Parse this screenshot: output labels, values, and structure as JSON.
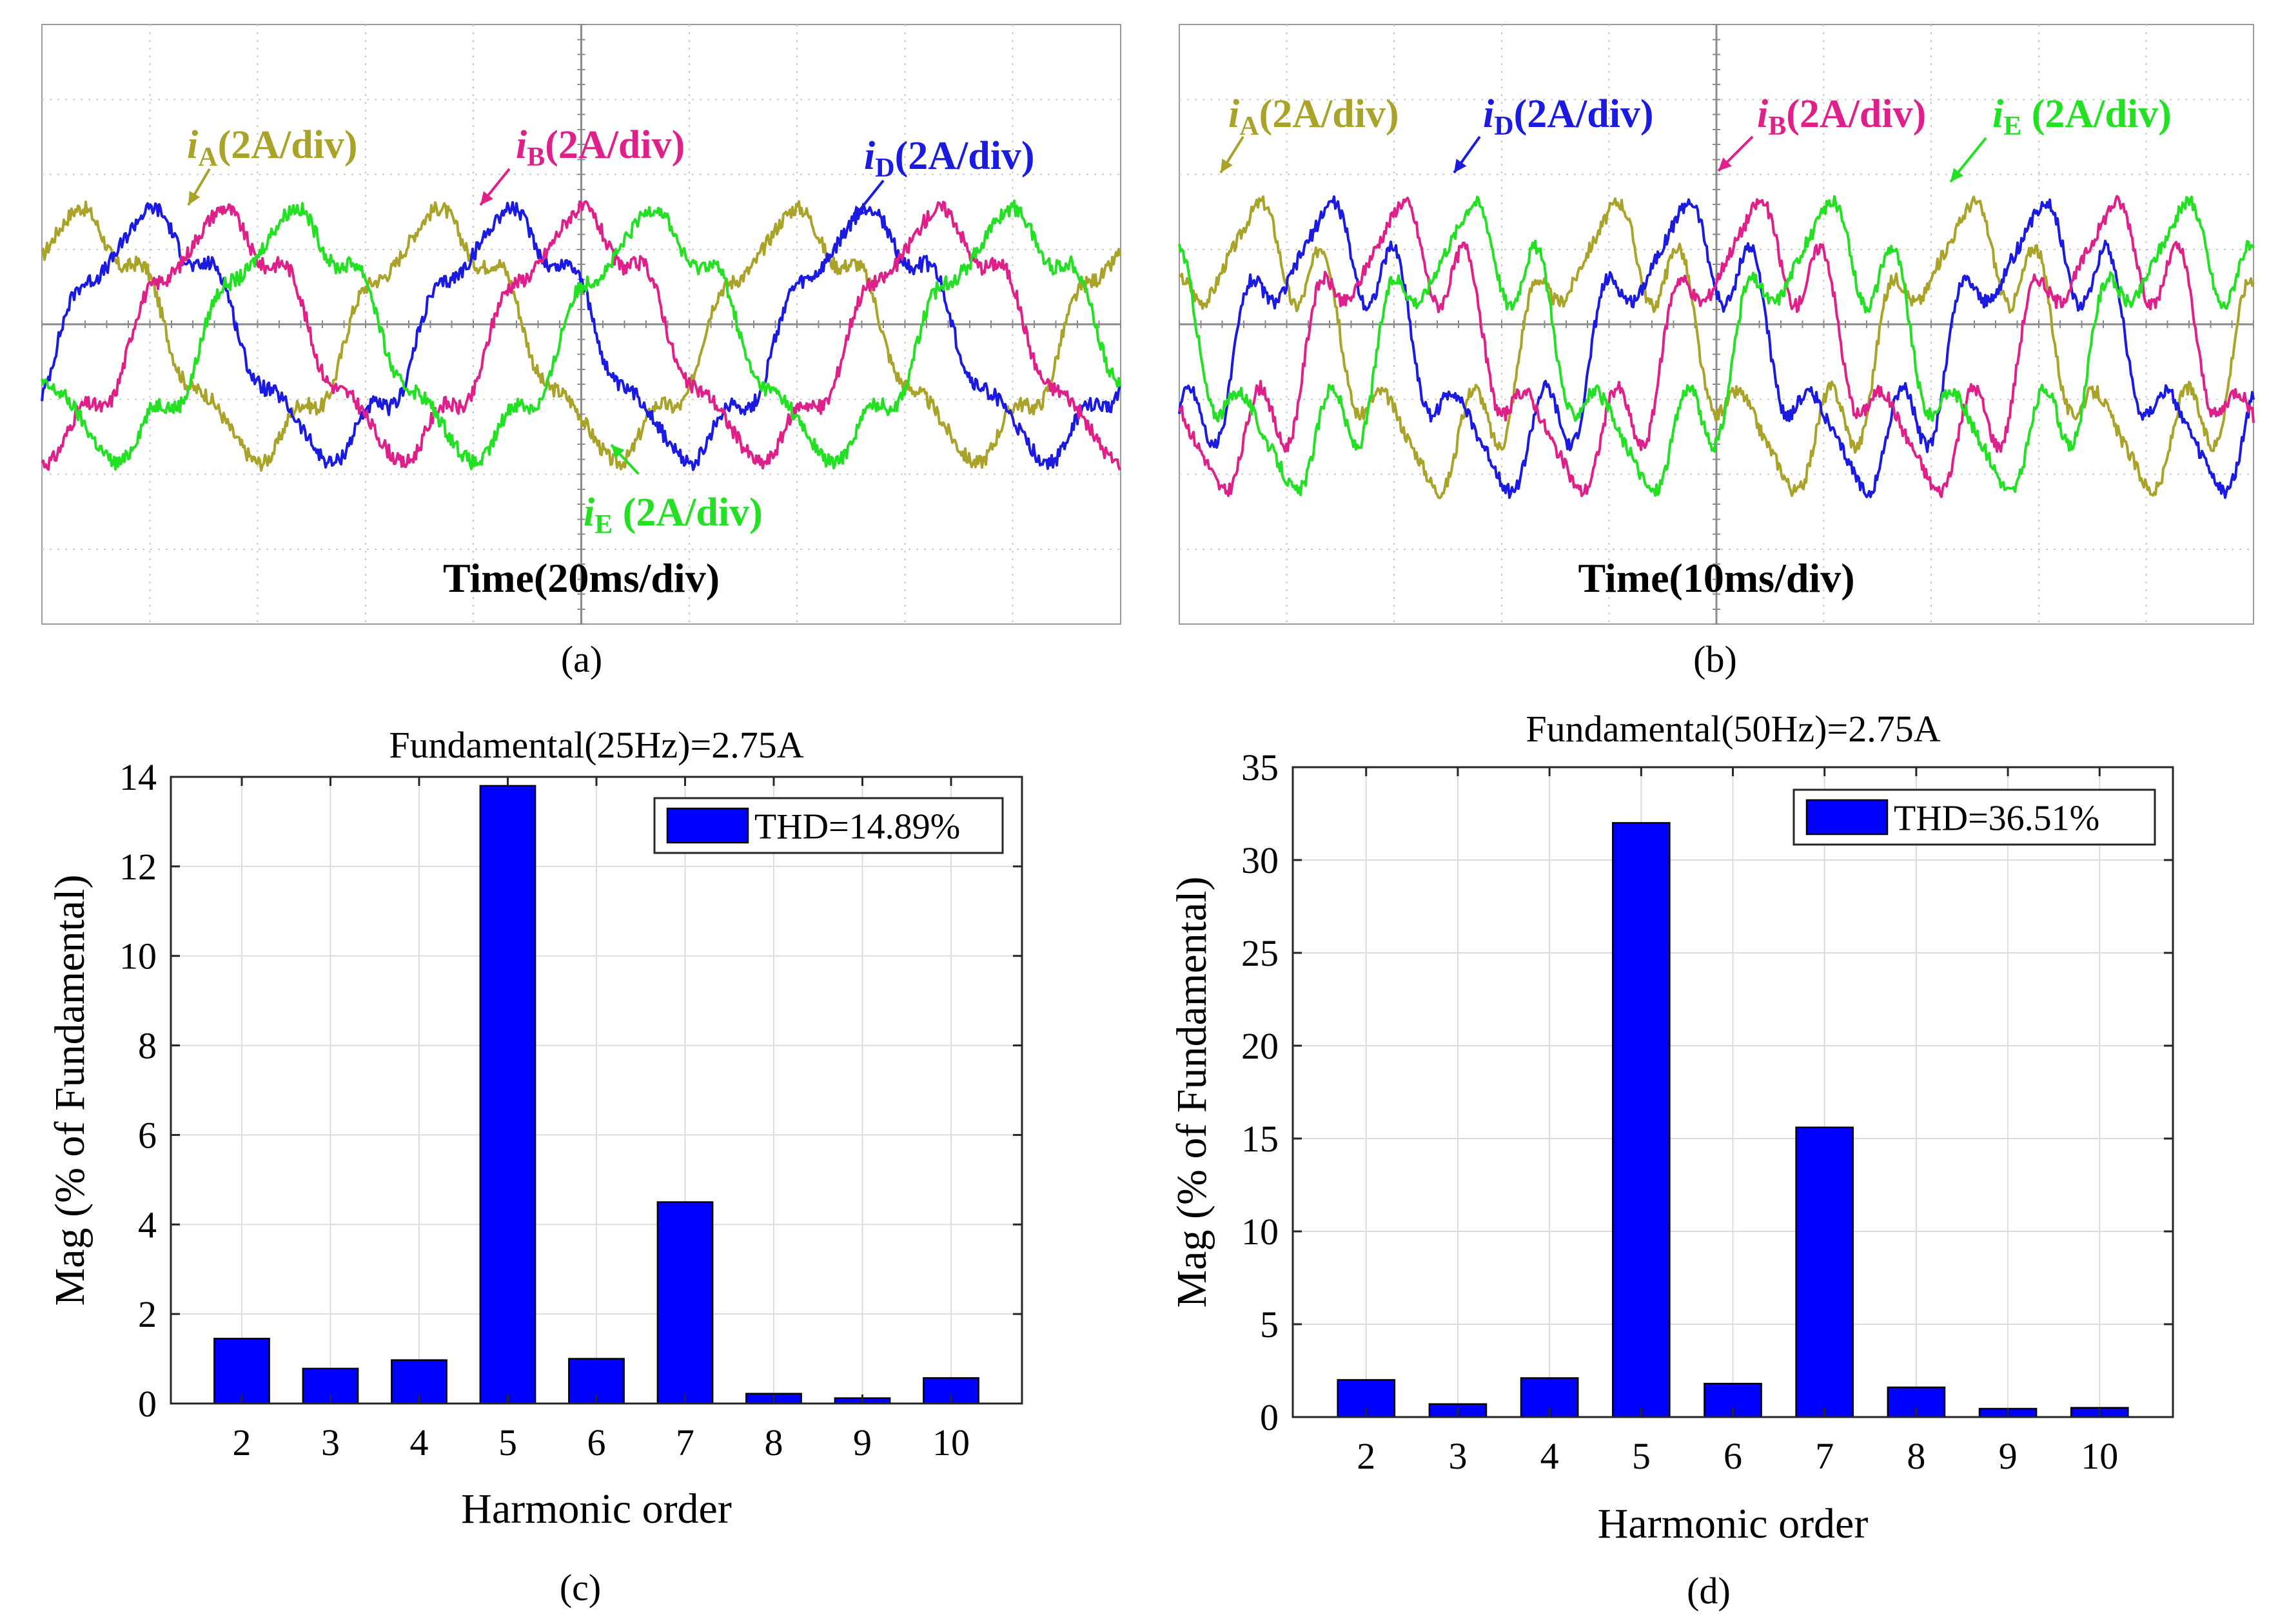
{
  "scopes": [
    {
      "id": "a",
      "caption": "(a)",
      "time_label": "Time(20ms/div)",
      "labels": [
        {
          "key": "iA",
          "italic": "i",
          "sub": "A",
          "rest": "(2A/div)",
          "color": "#a9a32a"
        },
        {
          "key": "iB",
          "italic": "i",
          "sub": "B",
          "rest": "(2A/div)",
          "color": "#e0208a"
        },
        {
          "key": "iD",
          "italic": "i",
          "sub": "D",
          "rest": "(2A/div)",
          "color": "#1a1ae0"
        },
        {
          "key": "iE",
          "italic": "i",
          "sub": "E",
          "rest": " (2A/div)",
          "color": "#22e022"
        }
      ]
    },
    {
      "id": "b",
      "caption": "(b)",
      "time_label": "Time(10ms/div)",
      "labels": [
        {
          "key": "iA",
          "italic": "i",
          "sub": "A",
          "rest": "(2A/div)",
          "color": "#a9a32a"
        },
        {
          "key": "iD",
          "italic": "i",
          "sub": "D",
          "rest": "(2A/div)",
          "color": "#1a1ae0"
        },
        {
          "key": "iB",
          "italic": "i",
          "sub": "B",
          "rest": "(2A/div)",
          "color": "#e0208a"
        },
        {
          "key": "iE",
          "italic": "i",
          "sub": "E",
          "rest": " (2A/div)",
          "color": "#22e022"
        }
      ]
    }
  ],
  "chart_data": [
    {
      "type": "bar",
      "panel": "c",
      "caption": "(c)",
      "title": "Fundamental(25Hz)=2.75A",
      "xlabel": "Harmonic order",
      "ylabel": "Mag (% of Fundamental)",
      "legend": "THD=14.89%",
      "legend_position": "top-right",
      "categories": [
        "2",
        "3",
        "4",
        "5",
        "6",
        "7",
        "8",
        "9",
        "10"
      ],
      "values": [
        1.45,
        0.78,
        0.97,
        13.8,
        1.0,
        4.5,
        0.22,
        0.12,
        0.57
      ],
      "ylim": [
        0,
        14
      ],
      "yticks": [
        "0",
        "2",
        "4",
        "6",
        "8",
        "10",
        "12",
        "14"
      ],
      "grid": true,
      "bar_color": "#0000ff"
    },
    {
      "type": "bar",
      "panel": "d",
      "caption": "(d)",
      "title": "Fundamental(50Hz)=2.75A",
      "xlabel": "Harmonic order",
      "ylabel": "Mag (% of Fundamental)",
      "legend": "THD=36.51%",
      "legend_position": "top-right",
      "categories": [
        "2",
        "3",
        "4",
        "5",
        "6",
        "7",
        "8",
        "9",
        "10"
      ],
      "values": [
        2.0,
        0.7,
        2.1,
        32.0,
        1.8,
        15.6,
        1.6,
        0.45,
        0.5
      ],
      "ylim": [
        0,
        35
      ],
      "yticks": [
        "0",
        "5",
        "10",
        "15",
        "20",
        "25",
        "30",
        "35"
      ],
      "grid": true,
      "bar_color": "#0000ff"
    }
  ]
}
